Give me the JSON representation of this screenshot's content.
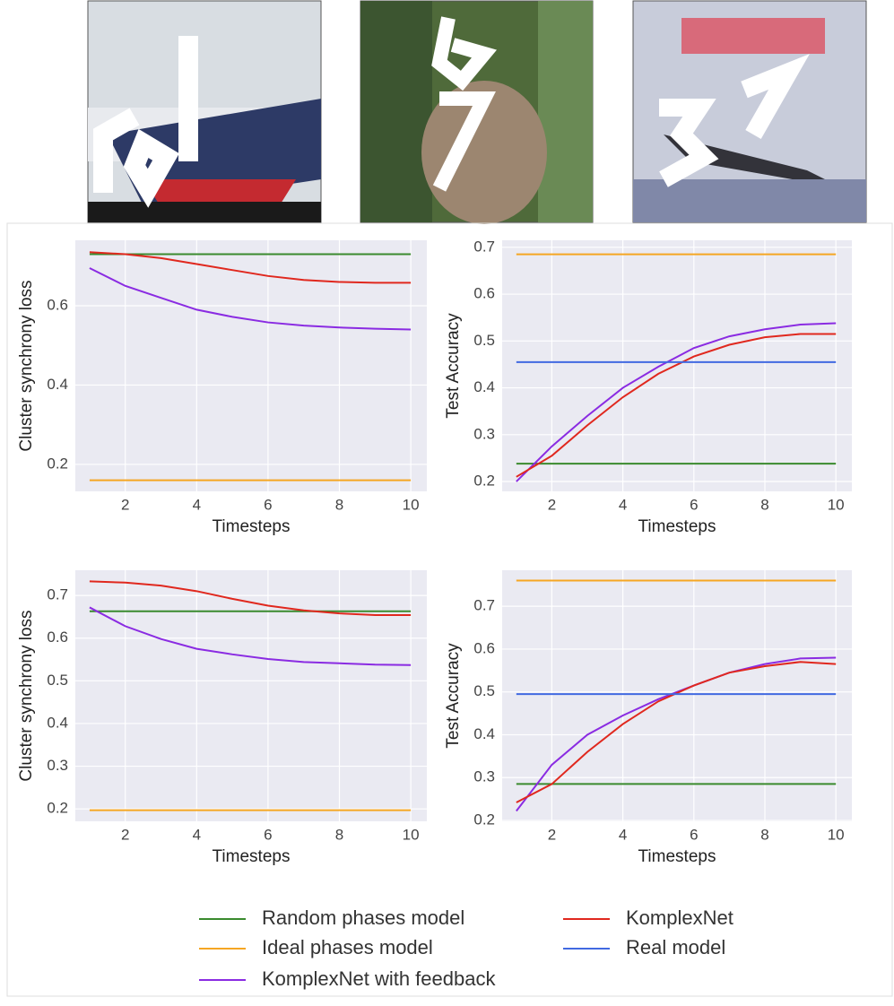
{
  "chart_data": [
    {
      "type": "line",
      "ylabel": "Cluster synchrony loss",
      "xlabel": "Timesteps",
      "x": [
        1,
        2,
        3,
        4,
        5,
        6,
        7,
        8,
        9,
        10
      ],
      "xlim": [
        0.6,
        10.45
      ],
      "xticks": [
        2,
        4,
        6,
        8,
        10
      ],
      "ylim": [
        0.132,
        0.765
      ],
      "yticks": [
        0.2,
        0.4,
        0.6
      ],
      "grid": true,
      "series": [
        {
          "name": "Random phases model",
          "color": "#3a8a2e",
          "values": [
            0.73,
            0.73,
            0.73,
            0.73,
            0.73,
            0.73,
            0.73,
            0.73,
            0.73,
            0.73
          ]
        },
        {
          "name": "Ideal phases model",
          "color": "#f5a623",
          "values": [
            0.16,
            0.16,
            0.16,
            0.16,
            0.16,
            0.16,
            0.16,
            0.16,
            0.16,
            0.16
          ]
        },
        {
          "name": "KomplexNet with feedback",
          "color": "#8a2be2",
          "values": [
            0.695,
            0.65,
            0.62,
            0.59,
            0.572,
            0.558,
            0.55,
            0.545,
            0.542,
            0.54
          ]
        },
        {
          "name": "KomplexNet",
          "color": "#e0281e",
          "values": [
            0.735,
            0.73,
            0.72,
            0.705,
            0.69,
            0.675,
            0.665,
            0.66,
            0.658,
            0.658
          ]
        }
      ]
    },
    {
      "type": "line",
      "ylabel": "Test Accuracy",
      "xlabel": "Timesteps",
      "x": [
        1,
        2,
        3,
        4,
        5,
        6,
        7,
        8,
        9,
        10
      ],
      "xlim": [
        0.6,
        10.45
      ],
      "xticks": [
        2,
        4,
        6,
        8,
        10
      ],
      "ylim": [
        0.179,
        0.715
      ],
      "yticks": [
        0.2,
        0.3,
        0.4,
        0.5,
        0.6,
        0.7
      ],
      "grid": true,
      "series": [
        {
          "name": "Random phases model",
          "color": "#3a8a2e",
          "values": [
            0.238,
            0.238,
            0.238,
            0.238,
            0.238,
            0.238,
            0.238,
            0.238,
            0.238,
            0.238
          ]
        },
        {
          "name": "Ideal phases model",
          "color": "#f5a623",
          "values": [
            0.685,
            0.685,
            0.685,
            0.685,
            0.685,
            0.685,
            0.685,
            0.685,
            0.685,
            0.685
          ]
        },
        {
          "name": "KomplexNet with feedback",
          "color": "#8a2be2",
          "values": [
            0.2,
            0.275,
            0.34,
            0.4,
            0.445,
            0.485,
            0.51,
            0.525,
            0.535,
            0.538
          ]
        },
        {
          "name": "KomplexNet",
          "color": "#e0281e",
          "values": [
            0.21,
            0.255,
            0.32,
            0.38,
            0.43,
            0.467,
            0.492,
            0.508,
            0.515,
            0.515
          ]
        },
        {
          "name": "Real model",
          "color": "#4169e1",
          "values": [
            0.455,
            0.455,
            0.455,
            0.455,
            0.455,
            0.455,
            0.455,
            0.455,
            0.455,
            0.455
          ]
        }
      ]
    },
    {
      "type": "line",
      "ylabel": "Cluster synchrony loss",
      "xlabel": "Timesteps",
      "x": [
        1,
        2,
        3,
        4,
        5,
        6,
        7,
        8,
        9,
        10
      ],
      "xlim": [
        0.6,
        10.45
      ],
      "xticks": [
        2,
        4,
        6,
        8,
        10
      ],
      "ylim": [
        0.171,
        0.759
      ],
      "yticks": [
        0.2,
        0.3,
        0.4,
        0.5,
        0.6,
        0.7
      ],
      "grid": true,
      "series": [
        {
          "name": "Random phases model",
          "color": "#3a8a2e",
          "values": [
            0.663,
            0.663,
            0.663,
            0.663,
            0.663,
            0.663,
            0.663,
            0.663,
            0.663,
            0.663
          ]
        },
        {
          "name": "Ideal phases model",
          "color": "#f5a623",
          "values": [
            0.197,
            0.197,
            0.197,
            0.197,
            0.197,
            0.197,
            0.197,
            0.197,
            0.197,
            0.197
          ]
        },
        {
          "name": "KomplexNet with feedback",
          "color": "#8a2be2",
          "values": [
            0.672,
            0.628,
            0.598,
            0.575,
            0.562,
            0.551,
            0.544,
            0.541,
            0.538,
            0.537
          ]
        },
        {
          "name": "KomplexNet",
          "color": "#e0281e",
          "values": [
            0.733,
            0.73,
            0.723,
            0.71,
            0.692,
            0.676,
            0.665,
            0.658,
            0.654,
            0.654
          ]
        }
      ]
    },
    {
      "type": "line",
      "ylabel": "Test Accuracy",
      "xlabel": "Timesteps",
      "x": [
        1,
        2,
        3,
        4,
        5,
        6,
        7,
        8,
        9,
        10
      ],
      "xlim": [
        0.6,
        10.45
      ],
      "xticks": [
        2,
        4,
        6,
        8,
        10
      ],
      "ylim": [
        0.198,
        0.784
      ],
      "yticks": [
        0.2,
        0.3,
        0.4,
        0.5,
        0.6,
        0.7
      ],
      "grid": true,
      "series": [
        {
          "name": "Random phases model",
          "color": "#3a8a2e",
          "values": [
            0.285,
            0.285,
            0.285,
            0.285,
            0.285,
            0.285,
            0.285,
            0.285,
            0.285,
            0.285
          ]
        },
        {
          "name": "Ideal phases model",
          "color": "#f5a623",
          "values": [
            0.76,
            0.76,
            0.76,
            0.76,
            0.76,
            0.76,
            0.76,
            0.76,
            0.76,
            0.76
          ]
        },
        {
          "name": "KomplexNet with feedback",
          "color": "#8a2be2",
          "values": [
            0.222,
            0.33,
            0.4,
            0.445,
            0.483,
            0.515,
            0.545,
            0.565,
            0.578,
            0.58
          ]
        },
        {
          "name": "KomplexNet",
          "color": "#e0281e",
          "values": [
            0.242,
            0.285,
            0.36,
            0.425,
            0.478,
            0.515,
            0.545,
            0.56,
            0.57,
            0.565
          ]
        },
        {
          "name": "Real model",
          "color": "#4169e1",
          "values": [
            0.495,
            0.495,
            0.495,
            0.495,
            0.495,
            0.495,
            0.495,
            0.495,
            0.495,
            0.495
          ]
        }
      ]
    }
  ]
}
